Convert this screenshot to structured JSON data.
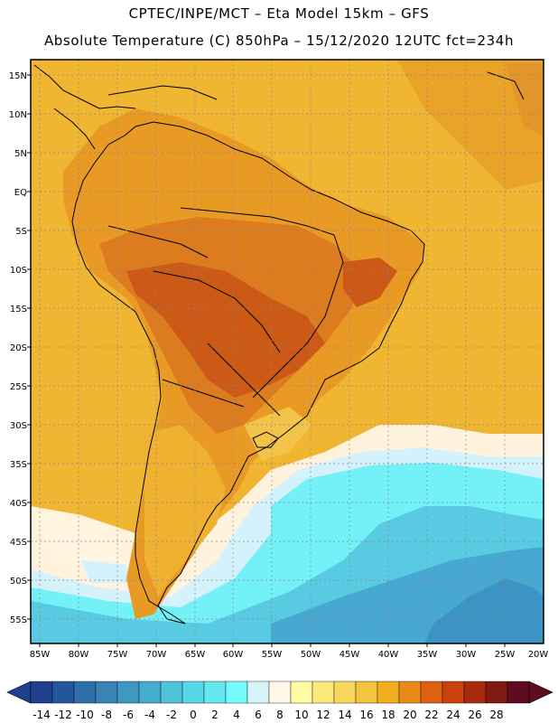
{
  "header": {
    "line1": "CPTEC/INPE/MCT –   Eta Model 15km – GFS",
    "line2": "Absolute Temperature (C) 850hPa – 15/12/2020 12UTC fct=234h"
  },
  "map": {
    "lat_labels": [
      "15N",
      "10N",
      "5N",
      "EQ",
      "5S",
      "10S",
      "15S",
      "20S",
      "25S",
      "30S",
      "35S",
      "40S",
      "45S",
      "50S",
      "55S"
    ],
    "lon_labels": [
      "85W",
      "80W",
      "75W",
      "70W",
      "65W",
      "60W",
      "55W",
      "50W",
      "45W",
      "40W",
      "35W",
      "30W",
      "25W",
      "20W"
    ]
  },
  "colorbar": {
    "labels": [
      "-14",
      "-12",
      "-10",
      "-8",
      "-6",
      "-4",
      "-2",
      "0",
      "2",
      "4",
      "6",
      "8",
      "10",
      "12",
      "14",
      "16",
      "18",
      "20",
      "22",
      "24",
      "26",
      "28"
    ],
    "colors": [
      "#1f3f8f",
      "#24569e",
      "#2e6ea8",
      "#3983b5",
      "#3f98c2",
      "#47adcf",
      "#4fc3da",
      "#56d8e6",
      "#62e8ee",
      "#74fcfc",
      "#d8f4fb",
      "#fff8e8",
      "#fffba2",
      "#fde87c",
      "#f8d65c",
      "#f3c43e",
      "#f0af1e",
      "#e98b16",
      "#de6010",
      "#c9420c",
      "#a82a0c",
      "#7f1a10",
      "#5e0c20"
    ],
    "colors_comment": ""
  },
  "palette": {
    "tropics": "#f2bb3a",
    "warm": "#e88c22",
    "hot": "#d96a18",
    "cool_land": "#f3c848",
    "cream": "#fff5e0",
    "pale": "#cfeffb",
    "cyan": "#74f2f8",
    "mid": "#55c8e0",
    "deep": "#44a6cf",
    "ocean_n": "#edb32f"
  }
}
